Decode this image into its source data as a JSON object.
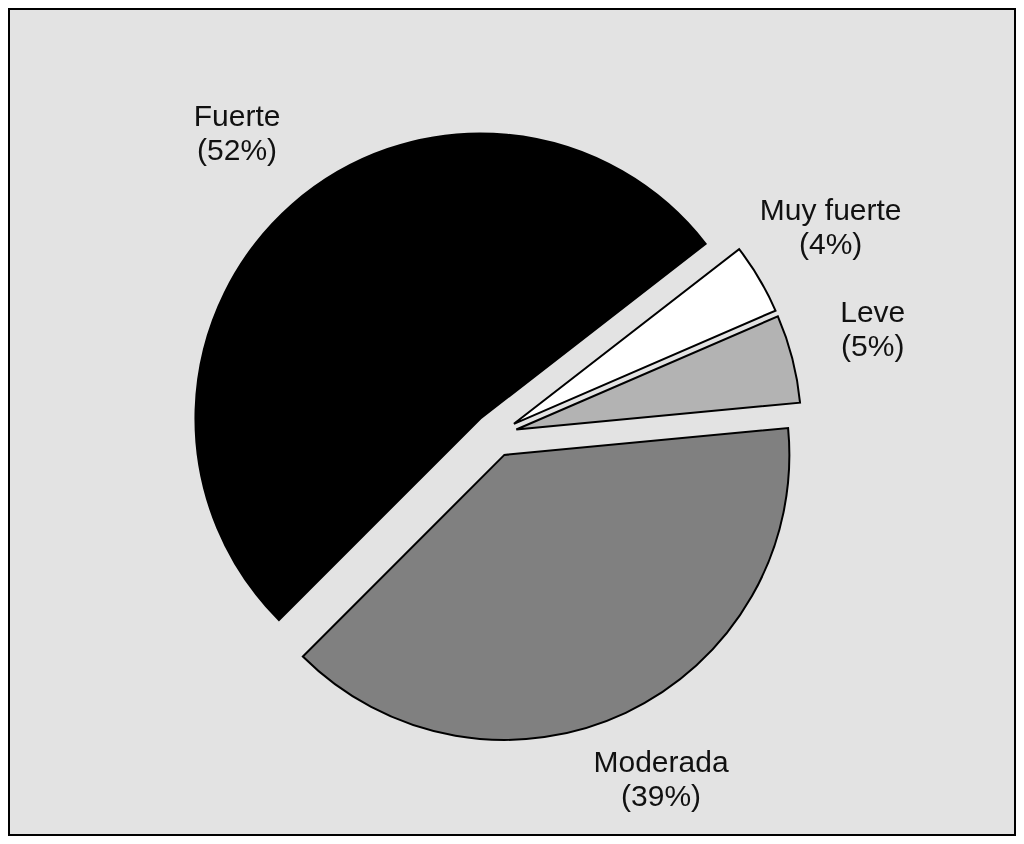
{
  "chart_data": {
    "type": "pie",
    "categories": [
      "Fuerte",
      "Muy fuerte",
      "Leve",
      "Moderada"
    ],
    "values": [
      52,
      4,
      5,
      39
    ],
    "colors": [
      "#000000",
      "#ffffff",
      "#b3b3b3",
      "#808080"
    ],
    "value_labels": [
      "(52%)",
      "(4%)",
      "(5%)",
      "(39%)"
    ]
  }
}
